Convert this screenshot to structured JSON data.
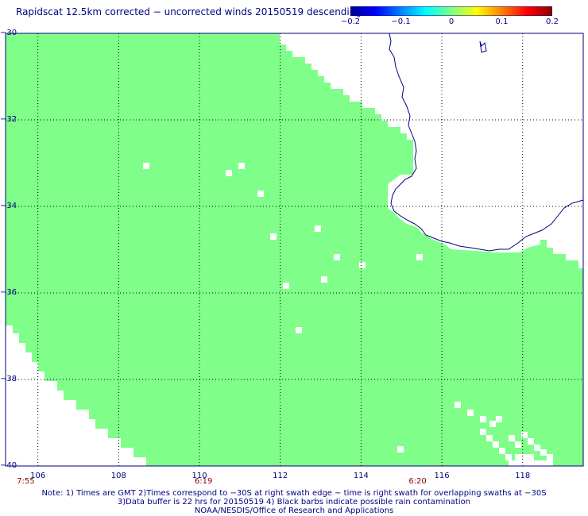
{
  "title": "Rapidscat 12.5km corrected − uncorrected winds 20150519 descending",
  "colorbar": {
    "colors": [
      "#00008b",
      "#0000ff",
      "#0080ff",
      "#00ffff",
      "#80ff80",
      "#ffff00",
      "#ff8000",
      "#ff0000",
      "#8b0000"
    ],
    "ticks": [
      "−0.2",
      "−0.1",
      "0",
      "0.1",
      "0.2"
    ],
    "range": [
      -0.2,
      0.2
    ]
  },
  "map": {
    "lat_range": [
      -40,
      -30
    ],
    "lon_range": [
      105.2,
      119.5
    ],
    "lat_labels": [
      "−30",
      "−32",
      "−34",
      "−36",
      "−38",
      "−40"
    ],
    "lon_labels": [
      "106",
      "108",
      "110",
      "112",
      "114",
      "116",
      "118"
    ],
    "swath_color": "#7fff8a",
    "coast_color": "#000080",
    "grid_color": "#000000"
  },
  "time_labels": [
    {
      "text": "7:55",
      "lon": 105.7
    },
    {
      "text": "6:19",
      "lon": 110.1
    },
    {
      "text": "6:20",
      "lon": 115.4
    }
  ],
  "notes": [
    "Note: 1) Times are GMT 2)Times correspond to −30S at right swath edge − time is right swath for overlapping swaths at −30S",
    "3)Data buffer is 22 hrs for 20150519 4) Black barbs indicate possible rain contamination",
    "NOAA/NESDIS/Office of Research and Applications"
  ]
}
